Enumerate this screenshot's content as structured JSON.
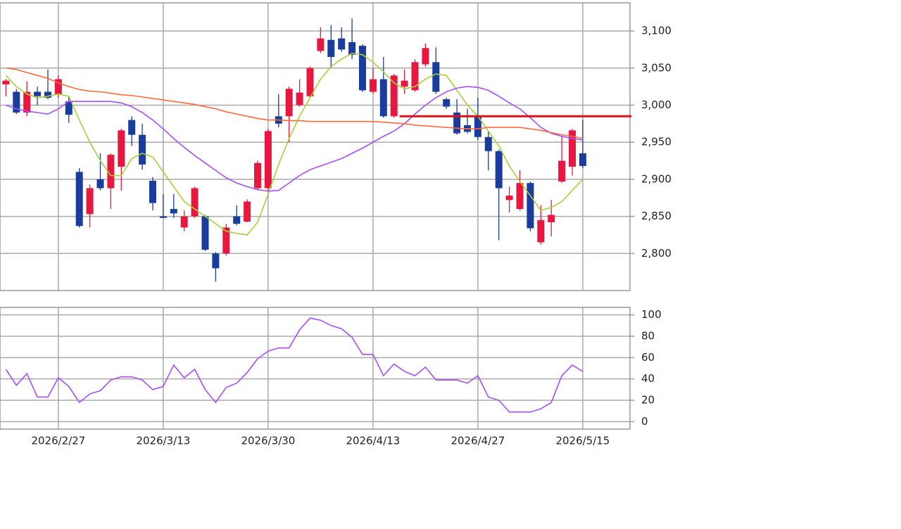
{
  "chart_data": [
    {
      "type": "candlestick",
      "categories": [
        null,
        null,
        null,
        null,
        null,
        "2026/2/27",
        null,
        null,
        null,
        null,
        null,
        null,
        null,
        null,
        null,
        "2026/3/13",
        null,
        null,
        null,
        null,
        null,
        null,
        null,
        null,
        null,
        "2026/3/30",
        null,
        null,
        null,
        null,
        null,
        null,
        null,
        null,
        null,
        "2026/4/13",
        null,
        null,
        null,
        null,
        null,
        null,
        null,
        null,
        null,
        "2026/4/27",
        null,
        null,
        null,
        null,
        null,
        null,
        null,
        null,
        null,
        "2026/5/15"
      ],
      "open": [
        3028,
        3018,
        2990,
        3018,
        3018,
        3015,
        3005,
        2910,
        2853,
        2900,
        2888,
        2917,
        2980,
        2960,
        2898,
        2850,
        2860,
        2835,
        2850,
        2850,
        2800,
        2800,
        2850,
        2843,
        2888,
        2888,
        2985,
        2985,
        3000,
        3012,
        3073,
        3088,
        3090,
        3085,
        3080,
        3018,
        3035,
        2985,
        3025,
        3020,
        3055,
        3058,
        3008,
        2990,
        2973,
        2985,
        2957,
        2938,
        2872,
        2860,
        2895,
        2815,
        2842,
        2897,
        2917,
        2935
      ],
      "high": [
        3035,
        3022,
        3032,
        3025,
        3048,
        3040,
        3012,
        2915,
        2893,
        2935,
        2935,
        2968,
        2985,
        2975,
        2903,
        2880,
        2880,
        2858,
        2890,
        2852,
        2802,
        2840,
        2865,
        2873,
        2925,
        2968,
        3015,
        3025,
        3035,
        3052,
        3105,
        3108,
        3105,
        3117,
        3082,
        3050,
        3065,
        3042,
        3048,
        3062,
        3083,
        3078,
        3010,
        3008,
        2995,
        3010,
        2965,
        2940,
        2890,
        2912,
        2897,
        2865,
        2872,
        2958,
        2968,
        2980
      ],
      "low": [
        3012,
        2988,
        2985,
        3000,
        3008,
        3010,
        2976,
        2835,
        2835,
        2885,
        2860,
        2885,
        2945,
        2913,
        2858,
        2848,
        2848,
        2830,
        2848,
        2803,
        2762,
        2797,
        2838,
        2842,
        2885,
        2885,
        2970,
        2950,
        2998,
        3010,
        3070,
        3050,
        3072,
        3062,
        3018,
        3015,
        2983,
        2983,
        3015,
        3018,
        3052,
        3015,
        2995,
        2960,
        2962,
        2953,
        2912,
        2818,
        2855,
        2858,
        2830,
        2812,
        2823,
        2895,
        2905,
        2915
      ],
      "close": [
        3033,
        2990,
        3018,
        3012,
        3010,
        3035,
        2987,
        2837,
        2888,
        2888,
        2933,
        2966,
        2960,
        2920,
        2868,
        2848,
        2854,
        2850,
        2888,
        2805,
        2780,
        2835,
        2840,
        2870,
        2922,
        2965,
        2975,
        3022,
        3017,
        3050,
        3090,
        3065,
        3075,
        3068,
        3020,
        3035,
        2985,
        3040,
        3033,
        3058,
        3077,
        3018,
        2998,
        2962,
        2964,
        2957,
        2938,
        2888,
        2878,
        2895,
        2834,
        2845,
        2852,
        2925,
        2966,
        2918
      ],
      "up_color": "#e8173f",
      "down_color": "#1a3c9c",
      "series": [
        {
          "color": "#a8cf3a",
          "values": [
            3040,
            3025,
            3015,
            3010,
            3012,
            3015,
            3012,
            2980,
            2950,
            2925,
            2905,
            2905,
            2928,
            2935,
            2930,
            2910,
            2890,
            2870,
            2860,
            2850,
            2840,
            2830,
            2827,
            2825,
            2842,
            2880,
            2920,
            2955,
            2985,
            3010,
            3035,
            3052,
            3062,
            3070,
            3068,
            3058,
            3045,
            3030,
            3022,
            3025,
            3035,
            3042,
            3040,
            3020,
            3000,
            2985,
            2965,
            2945,
            2918,
            2897,
            2878,
            2858,
            2862,
            2870,
            2885,
            2900
          ]
        },
        {
          "color": "#a64dff",
          "values": [
            3000,
            2995,
            2992,
            2990,
            2988,
            2995,
            3005,
            3005,
            3005,
            3005,
            3005,
            3003,
            2998,
            2990,
            2980,
            2968,
            2955,
            2943,
            2932,
            2922,
            2912,
            2902,
            2895,
            2890,
            2886,
            2884,
            2885,
            2895,
            2905,
            2913,
            2918,
            2923,
            2928,
            2935,
            2942,
            2950,
            2958,
            2965,
            2975,
            2988,
            3000,
            3010,
            3018,
            3023,
            3025,
            3024,
            3020,
            3012,
            3003,
            2995,
            2983,
            2970,
            2962,
            2958,
            2955,
            2953
          ]
        },
        {
          "color": "#ff6a3d",
          "values": [
            3050,
            3048,
            3044,
            3040,
            3036,
            3030,
            3025,
            3021,
            3019,
            3018,
            3016,
            3014,
            3013,
            3011,
            3009,
            3007,
            3005,
            3003,
            3001,
            2998,
            2995,
            2991,
            2988,
            2985,
            2982,
            2980,
            2980,
            2979,
            2979,
            2978,
            2978,
            2978,
            2978,
            2978,
            2978,
            2978,
            2977,
            2976,
            2975,
            2973,
            2972,
            2971,
            2970,
            2969,
            2968,
            2968,
            2970,
            2970,
            2970,
            2970,
            2968,
            2966,
            2963,
            2960,
            2958,
            2955
          ]
        }
      ],
      "hline": {
        "value": 2985,
        "from_index": 38,
        "color": "#e0101a"
      },
      "ylim": [
        2750,
        3138
      ],
      "yticks": [
        {
          "value": 2800,
          "label": "2,800"
        },
        {
          "value": 2850,
          "label": "2,850"
        },
        {
          "value": 2900,
          "label": "2,900"
        },
        {
          "value": 2950,
          "label": "2,950"
        },
        {
          "value": 3000,
          "label": "3,000"
        },
        {
          "value": 3050,
          "label": "3,050"
        },
        {
          "value": 3100,
          "label": "3,100"
        }
      ],
      "grid": true
    },
    {
      "type": "line",
      "series": [
        {
          "color": "#a64dff",
          "values": [
            49,
            34,
            45,
            23,
            23,
            41,
            33,
            18,
            26,
            29,
            39,
            42,
            42,
            39,
            30,
            33,
            53,
            41,
            49,
            30,
            18,
            32,
            36,
            46,
            59,
            66,
            69,
            69,
            86,
            97,
            95,
            90,
            87,
            79,
            63,
            63,
            43,
            54,
            47,
            43,
            51,
            39,
            39,
            39,
            36,
            43,
            23,
            20,
            9,
            9,
            9,
            12,
            18,
            43,
            53,
            47
          ]
        }
      ],
      "ylim": [
        -7,
        107
      ],
      "yticks": [
        0,
        20,
        40,
        60,
        80,
        100
      ],
      "grid": true
    }
  ]
}
